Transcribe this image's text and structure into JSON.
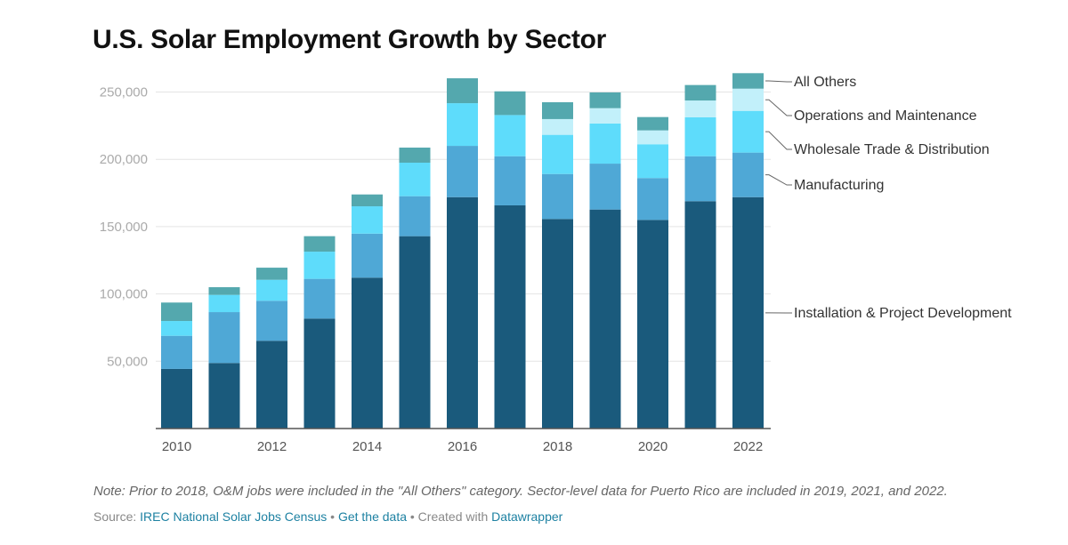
{
  "chart_data": {
    "type": "bar",
    "stacked": true,
    "title": "U.S. Solar Employment Growth by Sector",
    "categories": [
      "2010",
      "2011",
      "2012",
      "2013",
      "2014",
      "2015",
      "2016",
      "2017",
      "2018",
      "2019",
      "2020",
      "2021",
      "2022"
    ],
    "x_tick_labels": [
      "2010",
      "2012",
      "2014",
      "2016",
      "2018",
      "2020",
      "2022"
    ],
    "ylim": [
      0,
      265000
    ],
    "y_ticks": [
      50000,
      100000,
      150000,
      200000,
      250000
    ],
    "y_tick_labels": [
      "50,000",
      "100,000",
      "150,000",
      "200,000",
      "250,000"
    ],
    "grid": true,
    "legend": "right, direct labels",
    "series": [
      {
        "name": "Installation & Project Development",
        "color": "#1a5a7c",
        "values": [
          44300,
          48700,
          65200,
          81700,
          112100,
          142900,
          171900,
          165800,
          155700,
          162700,
          155000,
          168900,
          171900
        ]
      },
      {
        "name": "Manufacturing",
        "color": "#4fa8d6",
        "values": [
          24600,
          37800,
          29700,
          29500,
          32700,
          29700,
          38100,
          36500,
          33400,
          34100,
          31100,
          33400,
          33100
        ]
      },
      {
        "name": "Wholesale Trade & Distribution",
        "color": "#5edcfb",
        "values": [
          11000,
          12800,
          15600,
          20200,
          20300,
          24900,
          31700,
          30600,
          29100,
          29800,
          25100,
          28900,
          31000
        ]
      },
      {
        "name": "Operations and Maintenance",
        "color": "#c2f0fa",
        "values": [
          0,
          0,
          0,
          0,
          0,
          0,
          0,
          0,
          11700,
          11400,
          10300,
          12500,
          16500
        ]
      },
      {
        "name": "All Others",
        "color": "#54a8ae",
        "values": [
          13700,
          5700,
          9000,
          11500,
          8800,
          11200,
          18500,
          17600,
          12500,
          11700,
          9900,
          11500,
          11500
        ]
      }
    ]
  },
  "footer": {
    "note": "Note: Prior to 2018, O&M jobs were included in the \"All Others\" category. Sector-level data for Puerto Rico are included in 2019, 2021, and 2022.",
    "source_prefix": "Source: ",
    "source_link": "IREC National Solar Jobs Census",
    "sep1": " • ",
    "get_data": "Get the data",
    "sep2": " • Created with ",
    "created_with": "Datawrapper"
  }
}
